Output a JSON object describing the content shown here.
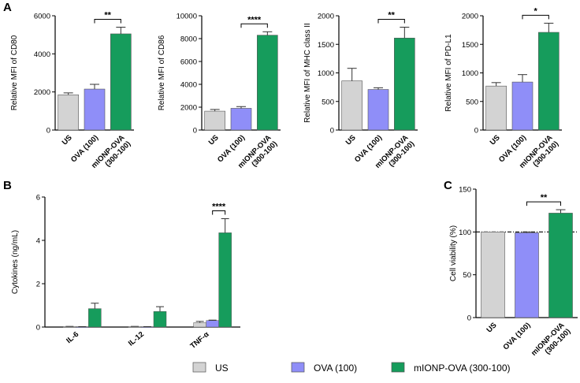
{
  "colors": {
    "US": "#d3d3d3",
    "OVA": "#8f8ef8",
    "mIONP": "#169c5c"
  },
  "legend": [
    {
      "label": "US",
      "color": "#d3d3d3"
    },
    {
      "label": "OVA (100)",
      "color": "#8f8ef8"
    },
    {
      "label": "mIONP-OVA (300-100)",
      "color": "#169c5c"
    }
  ],
  "chart_data": [
    {
      "panel": "A",
      "type": "bar",
      "title": "",
      "ylabel": "Relative MFI of CD80",
      "ylim": [
        0,
        6000
      ],
      "yticks": [
        0,
        2000,
        4000,
        6000
      ],
      "categories": [
        "US",
        "OVA (100)",
        "mIONP-OVA (300-100)"
      ],
      "category_labels": [
        [
          "US"
        ],
        [
          "OVA (100)"
        ],
        [
          "mIONP-OVA",
          "(300-100)"
        ]
      ],
      "values": [
        1850,
        2150,
        5050
      ],
      "errors": [
        100,
        250,
        350
      ],
      "significance": [
        {
          "from": 1,
          "to": 2,
          "label": "**"
        }
      ]
    },
    {
      "panel": "",
      "type": "bar",
      "title": "",
      "ylabel": "Relative MFI of CD86",
      "ylim": [
        0,
        10000
      ],
      "yticks": [
        0,
        2000,
        4000,
        6000,
        8000,
        10000
      ],
      "categories": [
        "US",
        "OVA (100)",
        "mIONP-OVA (300-100)"
      ],
      "category_labels": [
        [
          "US"
        ],
        [
          "OVA (100)"
        ],
        [
          "mIONP-OVA",
          "(300-100)"
        ]
      ],
      "values": [
        1650,
        1900,
        8300
      ],
      "errors": [
        150,
        150,
        300
      ],
      "significance": [
        {
          "from": 1,
          "to": 2,
          "label": "****"
        }
      ]
    },
    {
      "panel": "",
      "type": "bar",
      "title": "",
      "ylabel": "Relative MFI of MHC class II",
      "ylim": [
        0,
        2000
      ],
      "yticks": [
        0,
        500,
        1000,
        1500,
        2000
      ],
      "categories": [
        "US",
        "OVA (100)",
        "mIONP-OVA (300-100)"
      ],
      "category_labels": [
        [
          "US"
        ],
        [
          "OVA (100)"
        ],
        [
          "mIONP-OVA",
          "(300-100)"
        ]
      ],
      "values": [
        860,
        710,
        1610
      ],
      "errors": [
        220,
        30,
        190
      ],
      "significance": [
        {
          "from": 1,
          "to": 2,
          "label": "**"
        }
      ]
    },
    {
      "panel": "",
      "type": "bar",
      "title": "",
      "ylabel": "Relative MFI of PD-L1",
      "ylim": [
        0,
        2000
      ],
      "yticks": [
        0,
        500,
        1000,
        1500,
        2000
      ],
      "categories": [
        "US",
        "OVA (100)",
        "mIONP-OVA (300-100)"
      ],
      "category_labels": [
        [
          "US"
        ],
        [
          "OVA (100)"
        ],
        [
          "mIONP-OVA",
          "(300-100)"
        ]
      ],
      "values": [
        770,
        840,
        1710
      ],
      "errors": [
        60,
        130,
        160
      ],
      "significance": [
        {
          "from": 1,
          "to": 2,
          "label": "*"
        }
      ]
    },
    {
      "panel": "B",
      "type": "bar",
      "title": "",
      "ylabel": "Cytokines (ng/mL)",
      "ylim": [
        0,
        6
      ],
      "yticks": [
        0,
        2,
        4,
        6
      ],
      "categories": [
        "IL-6",
        "IL-12",
        "TNF-α"
      ],
      "series": [
        {
          "name": "US",
          "values": [
            0.02,
            0.02,
            0.2
          ],
          "errors": [
            0.01,
            0.01,
            0.06
          ]
        },
        {
          "name": "OVA (100)",
          "values": [
            0.01,
            0.01,
            0.3
          ],
          "errors": [
            0.01,
            0.01,
            0.02
          ]
        },
        {
          "name": "mIONP-OVA (300-100)",
          "values": [
            0.85,
            0.72,
            4.35
          ],
          "errors": [
            0.25,
            0.22,
            0.65
          ]
        }
      ],
      "significance": [
        {
          "category": 2,
          "from": 1,
          "to": 2,
          "label": "****"
        }
      ]
    },
    {
      "panel": "C",
      "type": "bar",
      "title": "",
      "ylabel": "Cell viability (%)",
      "ylim": [
        0,
        150
      ],
      "yticks": [
        0,
        50,
        100,
        150
      ],
      "categories": [
        "US",
        "OVA (100)",
        "mIONP-OVA (300-100)"
      ],
      "category_labels": [
        [
          "US"
        ],
        [
          "OVA (100)"
        ],
        [
          "mIONP-OVA",
          "(300-100)"
        ]
      ],
      "values": [
        100,
        99,
        122
      ],
      "errors": [
        0,
        1,
        4
      ],
      "reference_line": 100,
      "significance": [
        {
          "from": 1,
          "to": 2,
          "label": "**"
        }
      ]
    }
  ]
}
